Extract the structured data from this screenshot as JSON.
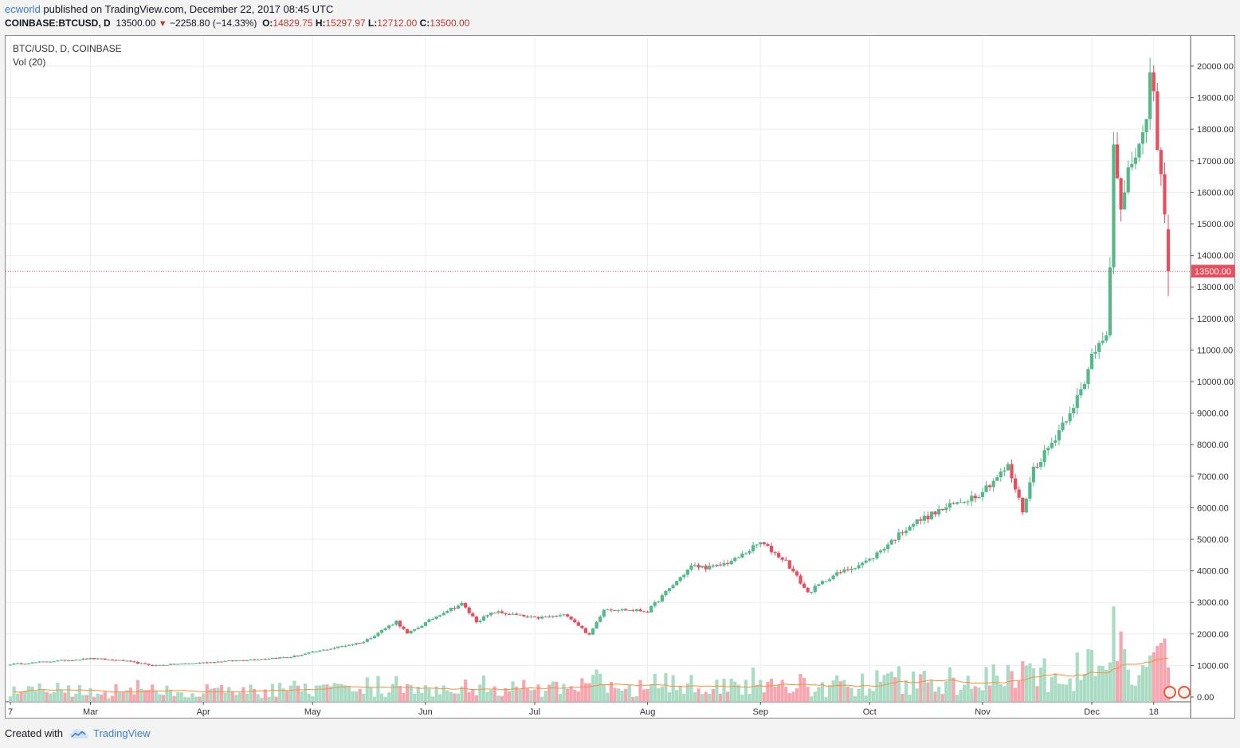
{
  "header": {
    "user": "ecworld",
    "published": " published on TradingView.com, December 22, 2017 08:45 UTC"
  },
  "ticker": {
    "symbol": "COINBASE:BTCUSD, D",
    "last": "13500.00",
    "change": "−2258.80 (−14.33%)",
    "open_label": "O:",
    "open": "14829.75",
    "high_label": "H:",
    "high": "15297.97",
    "low_label": "L:",
    "low": "12712.00",
    "close_label": "C:",
    "close": "13500.00"
  },
  "legend": {
    "main": "BTC/USD, D, COINBASE",
    "volume": "Vol (20)"
  },
  "footer": {
    "created_with": "Created with",
    "brand": "TradingView"
  },
  "colors": {
    "up": "#53b987",
    "down": "#eb4d5c",
    "volume_up": "#a9dcc3",
    "volume_down": "#f5a6ae",
    "volume_ma": "#ff8c3a",
    "price_line": "#eb4d5c",
    "grid": "#e9eef2"
  },
  "chart_data": {
    "type": "candlestick",
    "title": "BTC/USD, D, COINBASE",
    "ylim": [
      0,
      20500
    ],
    "y_ticks": [
      "20000.00",
      "19000.00",
      "18000.00",
      "17000.00",
      "16000.00",
      "15000.00",
      "14000.00",
      "13000.00",
      "12000.00",
      "11000.00",
      "10000.00",
      "9000.00",
      "8000.00",
      "7000.00",
      "6000.00",
      "5000.00",
      "4000.00",
      "3000.00",
      "2000.00",
      "1000.00",
      "0.00"
    ],
    "x_ticks": [
      {
        "label": "7",
        "date": "2017-02-07"
      },
      {
        "label": "Mar",
        "date": "2017-03-01"
      },
      {
        "label": "Apr",
        "date": "2017-04-01"
      },
      {
        "label": "May",
        "date": "2017-05-01"
      },
      {
        "label": "Jun",
        "date": "2017-06-01"
      },
      {
        "label": "Jul",
        "date": "2017-07-01"
      },
      {
        "label": "Aug",
        "date": "2017-08-01"
      },
      {
        "label": "Sep",
        "date": "2017-09-01"
      },
      {
        "label": "Oct",
        "date": "2017-10-01"
      },
      {
        "label": "Nov",
        "date": "2017-11-01"
      },
      {
        "label": "Dec",
        "date": "2017-12-01"
      },
      {
        "label": "18",
        "date": "2017-12-18"
      }
    ],
    "last_price": 13500,
    "last_price_label": "13500.00",
    "volume_pane_max_price_units": 5000,
    "price_path": [
      {
        "date": "2017-02-07",
        "close": 1040
      },
      {
        "date": "2017-03-01",
        "close": 1220
      },
      {
        "date": "2017-03-10",
        "close": 1150
      },
      {
        "date": "2017-03-18",
        "close": 1000
      },
      {
        "date": "2017-04-01",
        "close": 1090
      },
      {
        "date": "2017-04-25",
        "close": 1270
      },
      {
        "date": "2017-05-01",
        "close": 1420
      },
      {
        "date": "2017-05-15",
        "close": 1750
      },
      {
        "date": "2017-05-24",
        "close": 2400
      },
      {
        "date": "2017-05-27",
        "close": 2000
      },
      {
        "date": "2017-06-06",
        "close": 2700
      },
      {
        "date": "2017-06-11",
        "close": 2950
      },
      {
        "date": "2017-06-15",
        "close": 2400
      },
      {
        "date": "2017-06-20",
        "close": 2700
      },
      {
        "date": "2017-07-01",
        "close": 2500
      },
      {
        "date": "2017-07-10",
        "close": 2600
      },
      {
        "date": "2017-07-16",
        "close": 1950
      },
      {
        "date": "2017-07-20",
        "close": 2800
      },
      {
        "date": "2017-08-01",
        "close": 2720
      },
      {
        "date": "2017-08-13",
        "close": 4150
      },
      {
        "date": "2017-08-19",
        "close": 4100
      },
      {
        "date": "2017-08-25",
        "close": 4350
      },
      {
        "date": "2017-09-01",
        "close": 4900
      },
      {
        "date": "2017-09-08",
        "close": 4300
      },
      {
        "date": "2017-09-14",
        "close": 3300
      },
      {
        "date": "2017-09-20",
        "close": 3800
      },
      {
        "date": "2017-10-01",
        "close": 4350
      },
      {
        "date": "2017-10-12",
        "close": 5450
      },
      {
        "date": "2017-10-20",
        "close": 5900
      },
      {
        "date": "2017-10-31",
        "close": 6450
      },
      {
        "date": "2017-11-08",
        "close": 7300
      },
      {
        "date": "2017-11-12",
        "close": 5900
      },
      {
        "date": "2017-11-15",
        "close": 7250
      },
      {
        "date": "2017-11-20",
        "close": 8050
      },
      {
        "date": "2017-11-26",
        "close": 9300
      },
      {
        "date": "2017-11-29",
        "close": 9850
      },
      {
        "date": "2017-12-01",
        "close": 10850
      },
      {
        "date": "2017-12-05",
        "close": 11650
      },
      {
        "date": "2017-12-06",
        "close": 13750
      },
      {
        "date": "2017-12-07",
        "close": 17400
      },
      {
        "date": "2017-12-09",
        "close": 15200
      },
      {
        "date": "2017-12-11",
        "close": 16900
      },
      {
        "date": "2017-12-13",
        "close": 16950
      },
      {
        "date": "2017-12-15",
        "close": 17600
      },
      {
        "date": "2017-12-17",
        "close": 19650
      },
      {
        "date": "2017-12-18",
        "close": 19050
      },
      {
        "date": "2017-12-19",
        "close": 17400
      },
      {
        "date": "2017-12-20",
        "close": 16350
      },
      {
        "date": "2017-12-21",
        "close": 15550
      },
      {
        "date": "2017-12-22",
        "close": 13500
      }
    ]
  }
}
